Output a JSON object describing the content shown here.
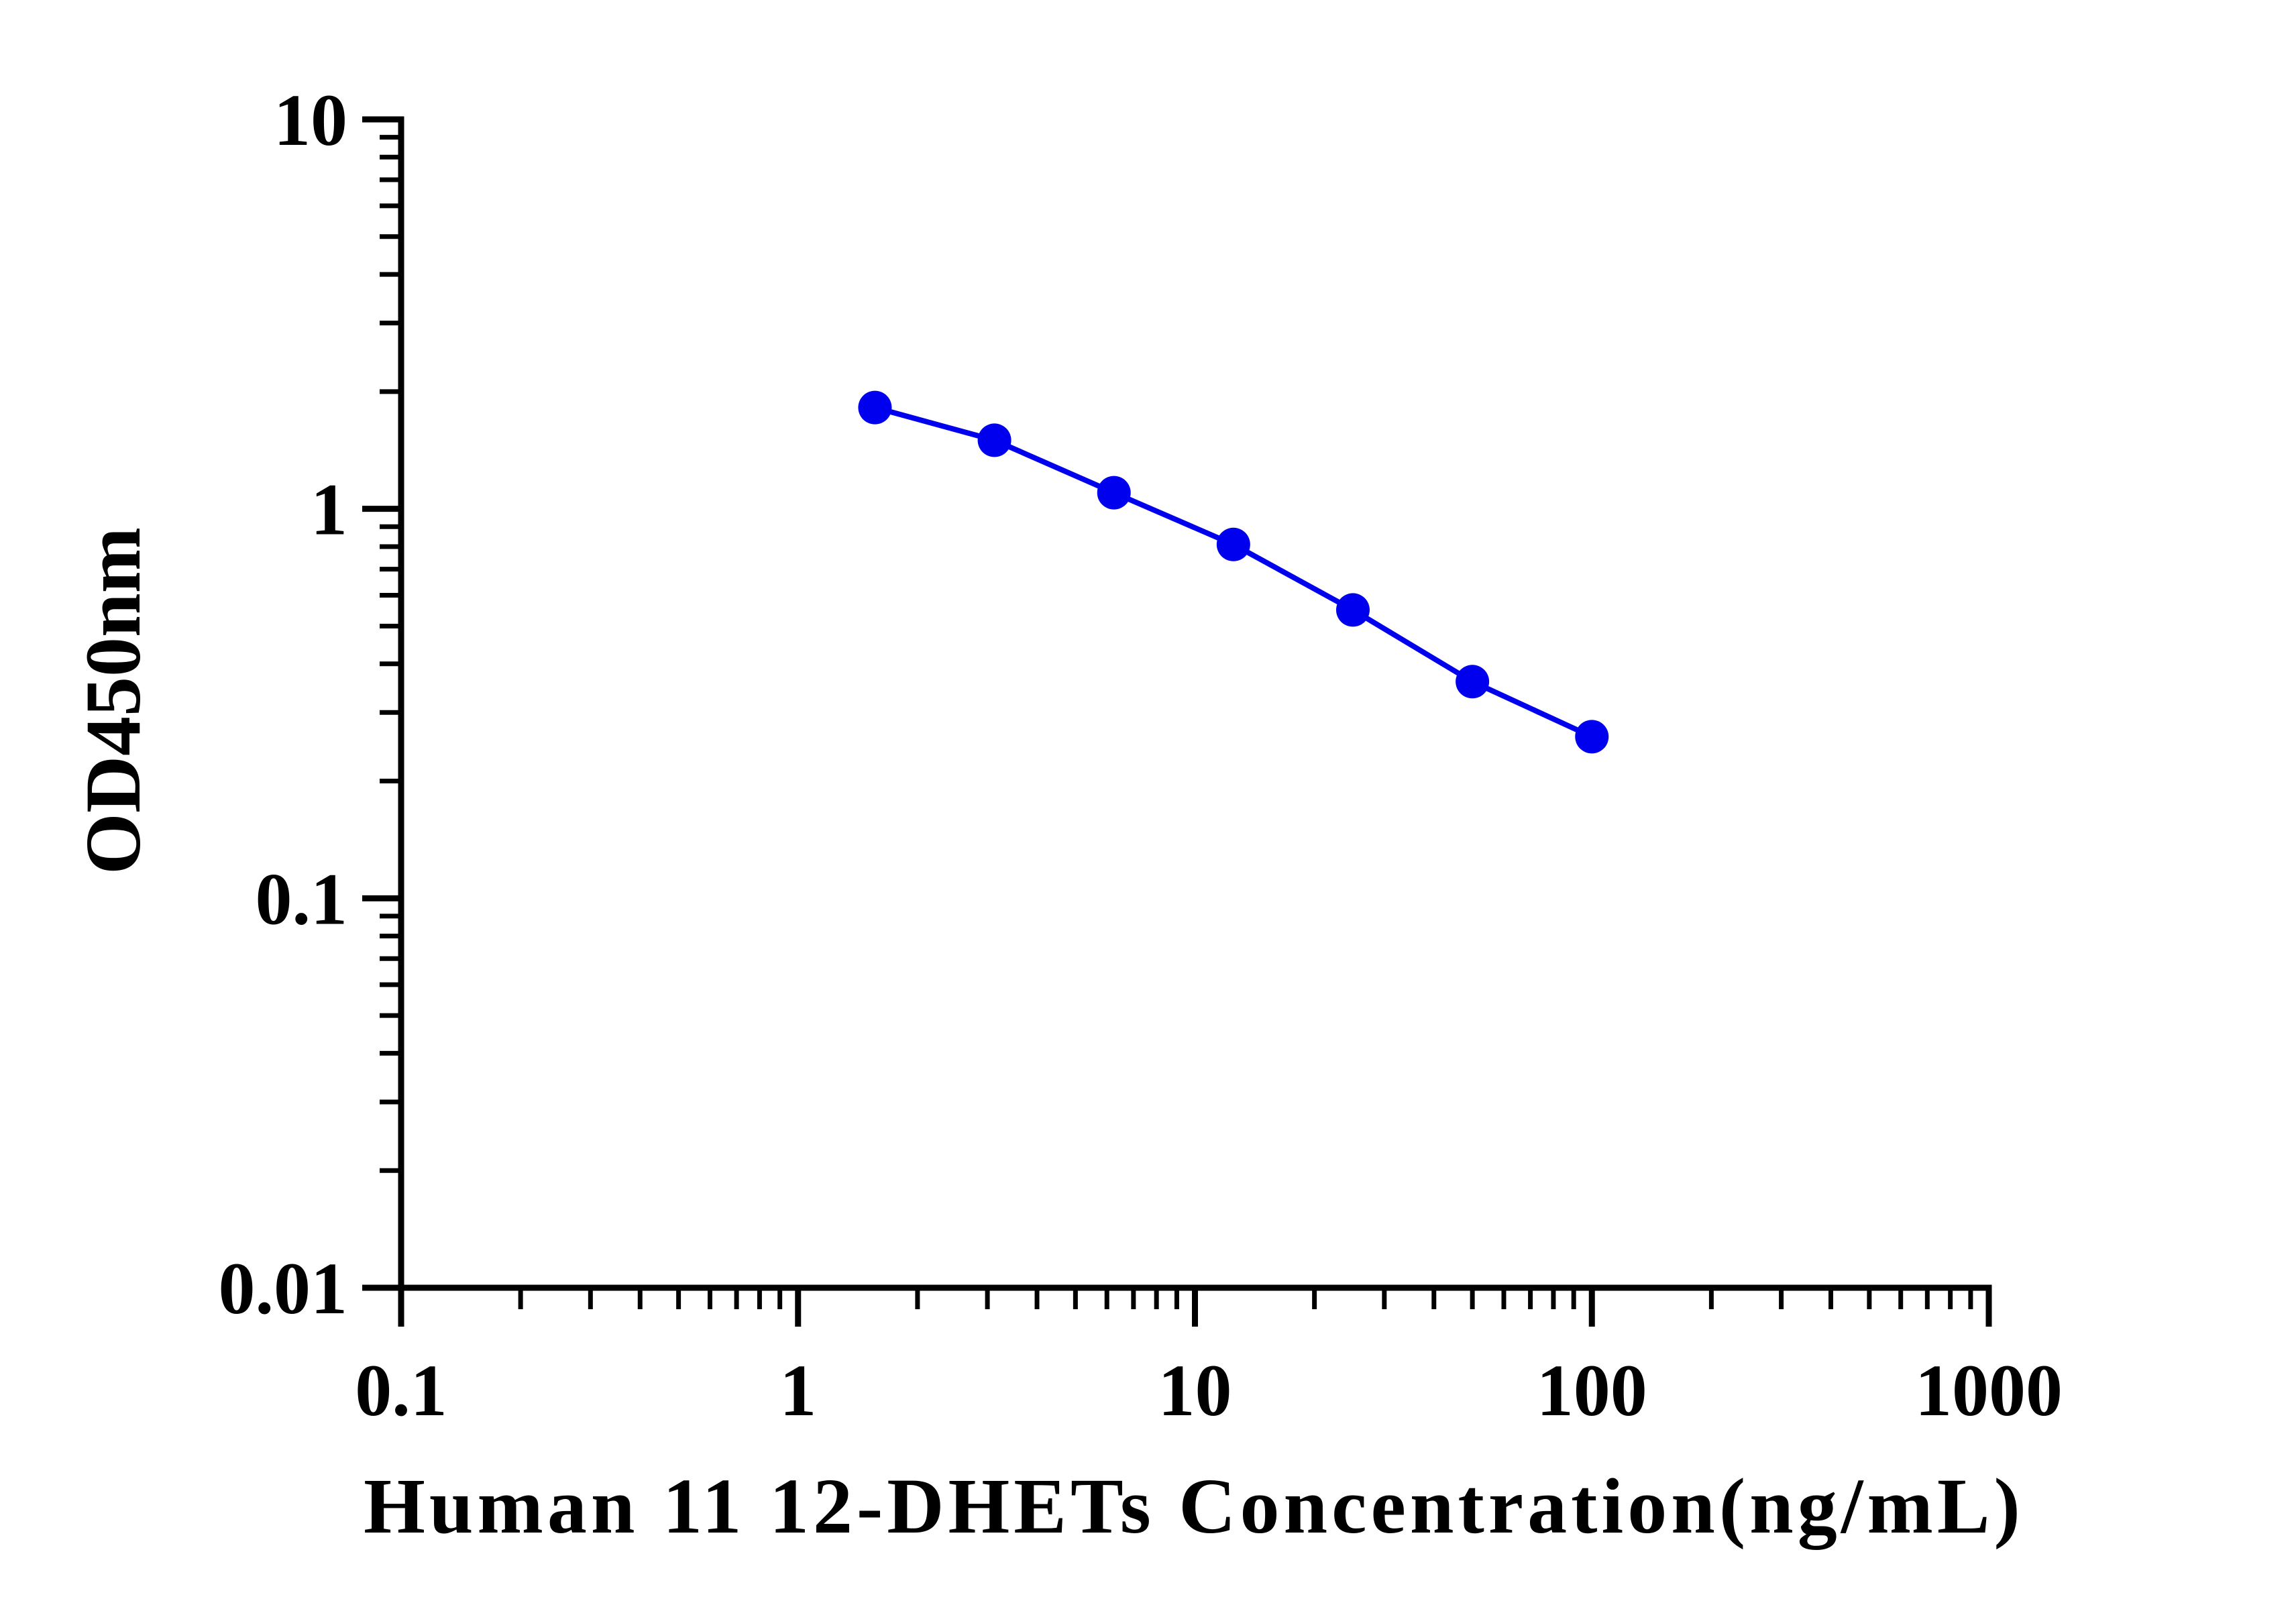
{
  "chart_data": {
    "type": "line",
    "title": "",
    "xlabel": "Human 11 12-DHETs Concentration(ng/mL)",
    "ylabel": "OD450nm",
    "x_scale": "log",
    "y_scale": "log",
    "xlim": [
      0.1,
      1000
    ],
    "ylim": [
      0.01,
      10
    ],
    "x_ticks": [
      0.1,
      1,
      10,
      100,
      1000
    ],
    "x_tick_labels": [
      "0.1",
      "1",
      "10",
      "100",
      "1000"
    ],
    "y_ticks": [
      0.01,
      0.1,
      1,
      10
    ],
    "y_tick_labels": [
      "0.01",
      "0.1",
      "1",
      "10"
    ],
    "grid": false,
    "legend": "none",
    "series": [
      {
        "color": "#0000ee",
        "x": [
          1.5625,
          3.125,
          6.25,
          12.5,
          25,
          50,
          100
        ],
        "y": [
          1.82,
          1.5,
          1.1,
          0.81,
          0.55,
          0.36,
          0.26
        ]
      }
    ]
  }
}
